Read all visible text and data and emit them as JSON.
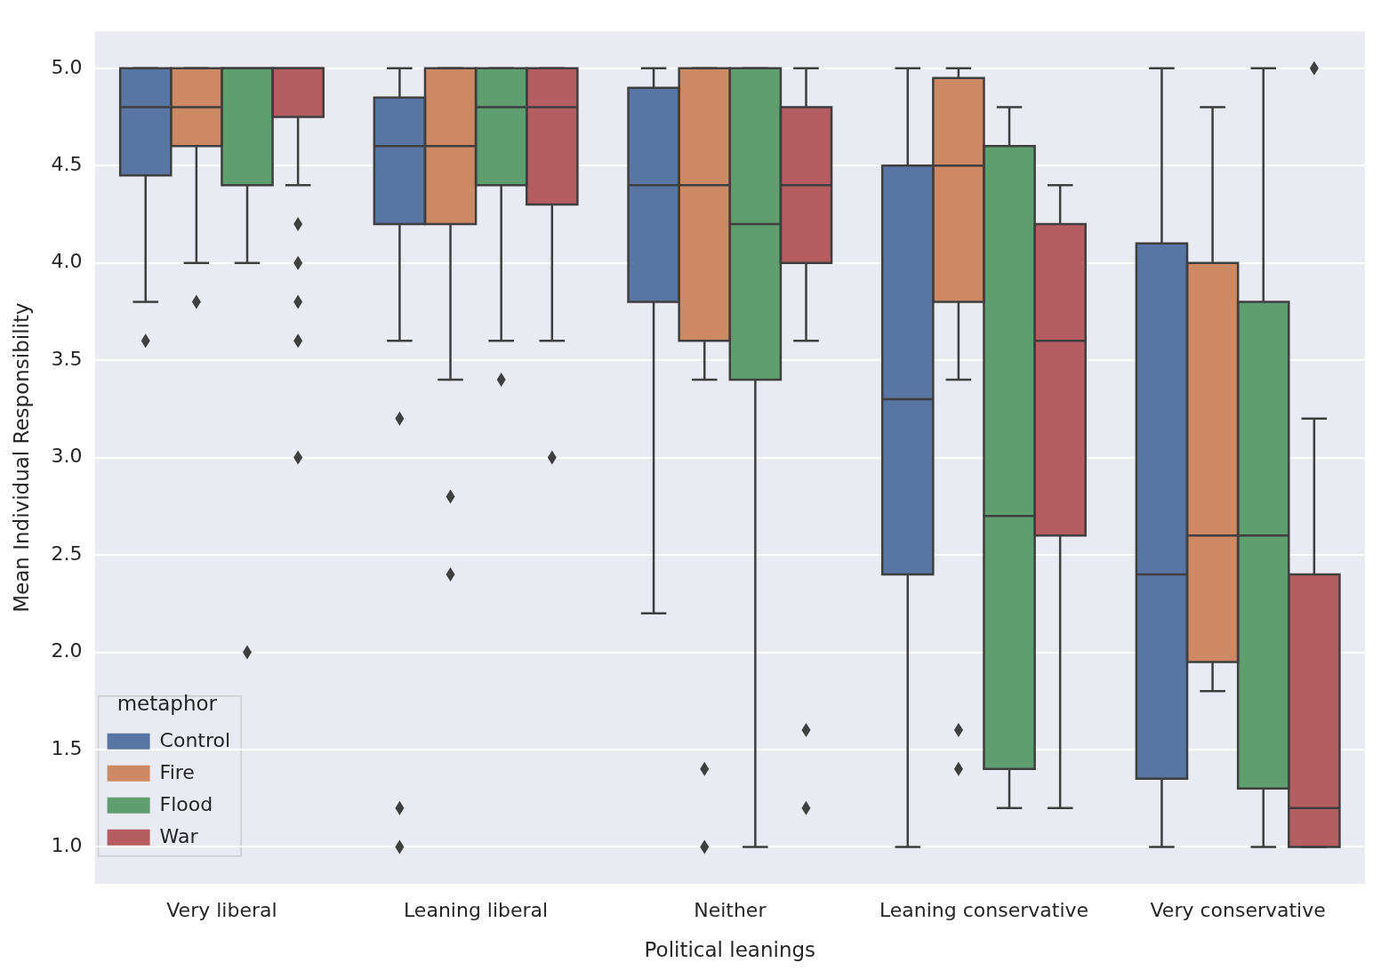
{
  "chart_data": {
    "type": "box",
    "xlabel": "Political leanings",
    "ylabel": "Mean Individual Responsibility",
    "legend_title": "metaphor",
    "legend": "bottom left",
    "grid": "y",
    "categories": [
      "Very liberal",
      "Leaning liberal",
      "Neither",
      "Leaning conservative",
      "Very conservative"
    ],
    "ylim": [
      0.81,
      5.19
    ],
    "yticks": [
      {
        "value": 1,
        "label": "1.0"
      },
      {
        "value": 1.5,
        "label": "1.5"
      },
      {
        "value": 2,
        "label": "2.0"
      },
      {
        "value": 2.5,
        "label": "2.5"
      },
      {
        "value": 3,
        "label": "3.0"
      },
      {
        "value": 3.5,
        "label": "3.5"
      },
      {
        "value": 4,
        "label": "4.0"
      },
      {
        "value": 4.5,
        "label": "4.5"
      },
      {
        "value": 5,
        "label": "5.0"
      }
    ],
    "series": [
      {
        "name": "Control",
        "color": "#5875a4",
        "boxes": [
          {
            "low": 3.8,
            "q1": 4.45,
            "median": 4.8,
            "q3": 5,
            "high": 5,
            "outliers": [
              3.6
            ]
          },
          {
            "low": 3.6,
            "q1": 4.2,
            "median": 4.6,
            "q3": 4.85,
            "high": 5,
            "outliers": [
              3.2,
              1.2,
              1.0
            ]
          },
          {
            "low": 2.2,
            "q1": 3.8,
            "median": 4.4,
            "q3": 4.9,
            "high": 5
          },
          {
            "low": 1.0,
            "q1": 2.4,
            "median": 3.3,
            "q3": 4.5,
            "high": 5
          },
          {
            "low": 1.0,
            "q1": 1.35,
            "median": 2.4,
            "q3": 4.1,
            "high": 5
          }
        ]
      },
      {
        "name": "Fire",
        "color": "#cc8963",
        "boxes": [
          {
            "low": 4.0,
            "q1": 4.6,
            "median": 4.8,
            "q3": 5,
            "high": 5,
            "outliers": [
              3.8
            ]
          },
          {
            "low": 3.4,
            "q1": 4.2,
            "median": 4.6,
            "q3": 5,
            "high": 5,
            "outliers": [
              2.8,
              2.4
            ]
          },
          {
            "low": 3.4,
            "q1": 3.6,
            "median": 4.4,
            "q3": 5,
            "high": 5,
            "outliers": [
              1.4,
              1.0
            ]
          },
          {
            "low": 3.4,
            "q1": 3.8,
            "median": 4.5,
            "q3": 4.95,
            "high": 5,
            "outliers": [
              1.6,
              1.4
            ]
          },
          {
            "low": 1.8,
            "q1": 1.95,
            "median": 2.6,
            "q3": 4.0,
            "high": 4.8
          }
        ]
      },
      {
        "name": "Flood",
        "color": "#5f9e6e",
        "boxes": [
          {
            "low": 4.0,
            "q1": 4.4,
            "median": 5,
            "q3": 5,
            "high": 5,
            "outliers": [
              2.0
            ]
          },
          {
            "low": 3.6,
            "q1": 4.4,
            "median": 4.8,
            "q3": 5,
            "high": 5,
            "outliers": [
              3.4
            ]
          },
          {
            "low": 1.0,
            "q1": 3.4,
            "median": 4.2,
            "q3": 5,
            "high": 5
          },
          {
            "low": 1.2,
            "q1": 1.4,
            "median": 2.7,
            "q3": 4.6,
            "high": 4.8
          },
          {
            "low": 1.0,
            "q1": 1.3,
            "median": 2.6,
            "q3": 3.8,
            "high": 5
          }
        ]
      },
      {
        "name": "War",
        "color": "#b55d60",
        "boxes": [
          {
            "low": 4.4,
            "q1": 4.75,
            "median": 5,
            "q3": 5,
            "high": 5,
            "outliers": [
              4.2,
              4.0,
              3.8,
              3.6,
              3.0
            ]
          },
          {
            "low": 3.6,
            "q1": 4.3,
            "median": 4.8,
            "q3": 5,
            "high": 5,
            "outliers": [
              3.0
            ]
          },
          {
            "low": 3.6,
            "q1": 4.0,
            "median": 4.4,
            "q3": 4.8,
            "high": 5,
            "outliers": [
              1.6,
              1.2
            ]
          },
          {
            "low": 1.2,
            "q1": 2.6,
            "median": 3.6,
            "q3": 4.2,
            "high": 4.4
          },
          {
            "low": 1.0,
            "q1": 1.0,
            "median": 1.2,
            "q3": 2.4,
            "high": 3.2,
            "outliers": [
              5.0
            ]
          }
        ]
      }
    ]
  }
}
